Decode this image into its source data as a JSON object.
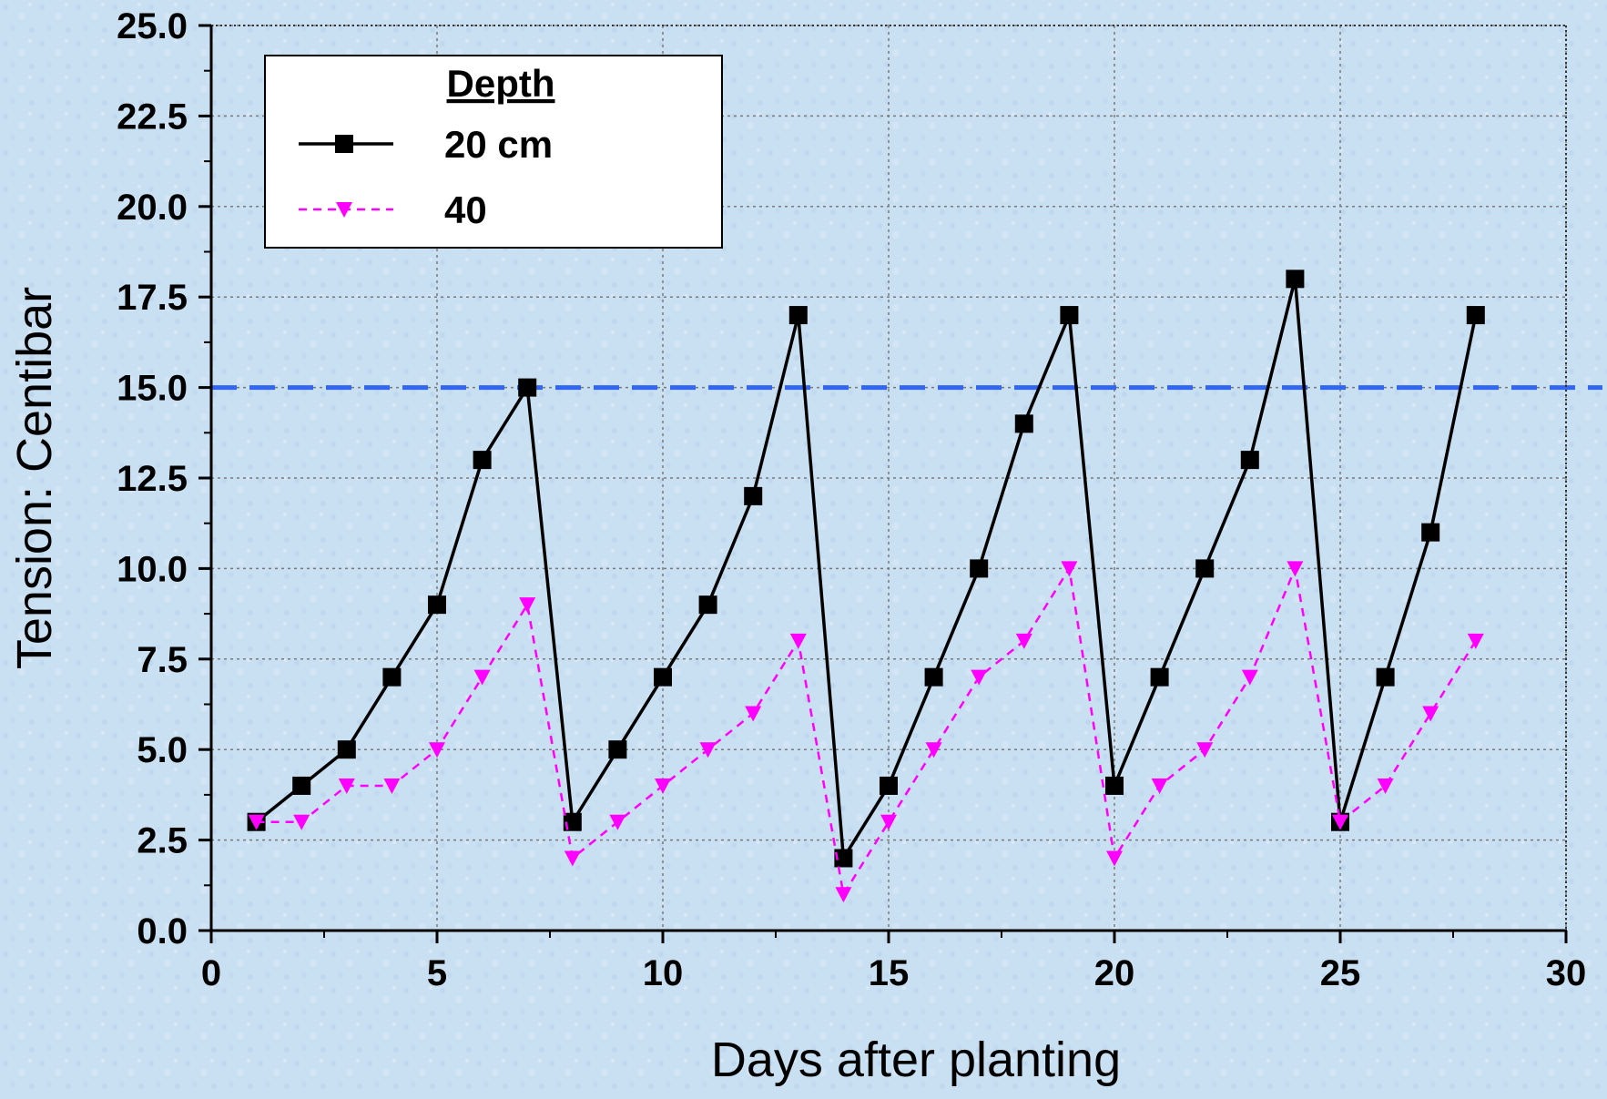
{
  "chart_data": {
    "type": "line",
    "xlabel": "Days after planting",
    "ylabel": "Tension: Centibar",
    "xlim": [
      0,
      30
    ],
    "ylim": [
      0,
      25
    ],
    "x_ticks": [
      "0",
      "5",
      "10",
      "15",
      "20",
      "25",
      "30"
    ],
    "y_ticks": [
      "0.0",
      "2.5",
      "5.0",
      "7.5",
      "10.0",
      "12.5",
      "15.0",
      "17.5",
      "20.0",
      "22.5",
      "25.0"
    ],
    "grid": true,
    "legend": {
      "title": "Depth",
      "placement": "top-left"
    },
    "series": [
      {
        "name": "20 cm",
        "color": "#000000",
        "line_style": "solid",
        "marker": "square",
        "x": [
          1,
          2,
          3,
          4,
          5,
          6,
          7,
          8,
          9,
          10,
          11,
          12,
          13,
          14,
          15,
          16,
          17,
          18,
          19,
          20,
          21,
          22,
          23,
          24,
          25,
          26,
          27,
          28
        ],
        "y": [
          3,
          4,
          5,
          7,
          9,
          13,
          15,
          3,
          5,
          7,
          9,
          12,
          17,
          2,
          4,
          7,
          10,
          14,
          17,
          4,
          7,
          10,
          13,
          18,
          3,
          7,
          11,
          17
        ]
      },
      {
        "name": "40",
        "color": "#ff00ff",
        "line_style": "dashed",
        "marker": "triangle-down",
        "x": [
          1,
          2,
          3,
          4,
          5,
          6,
          7,
          8,
          9,
          10,
          11,
          12,
          13,
          14,
          15,
          16,
          17,
          18,
          19,
          20,
          21,
          22,
          23,
          24,
          25,
          26,
          27,
          28
        ],
        "y": [
          3,
          3,
          4,
          4,
          5,
          7,
          9,
          2,
          3,
          4,
          5,
          6,
          8,
          1,
          3,
          5,
          7,
          8,
          10,
          2,
          4,
          5,
          7,
          10,
          3,
          4,
          6,
          8
        ]
      }
    ],
    "reference_lines": [
      {
        "axis": "y",
        "value": 15,
        "color": "#3366ee",
        "line_style": "dashed"
      }
    ]
  }
}
